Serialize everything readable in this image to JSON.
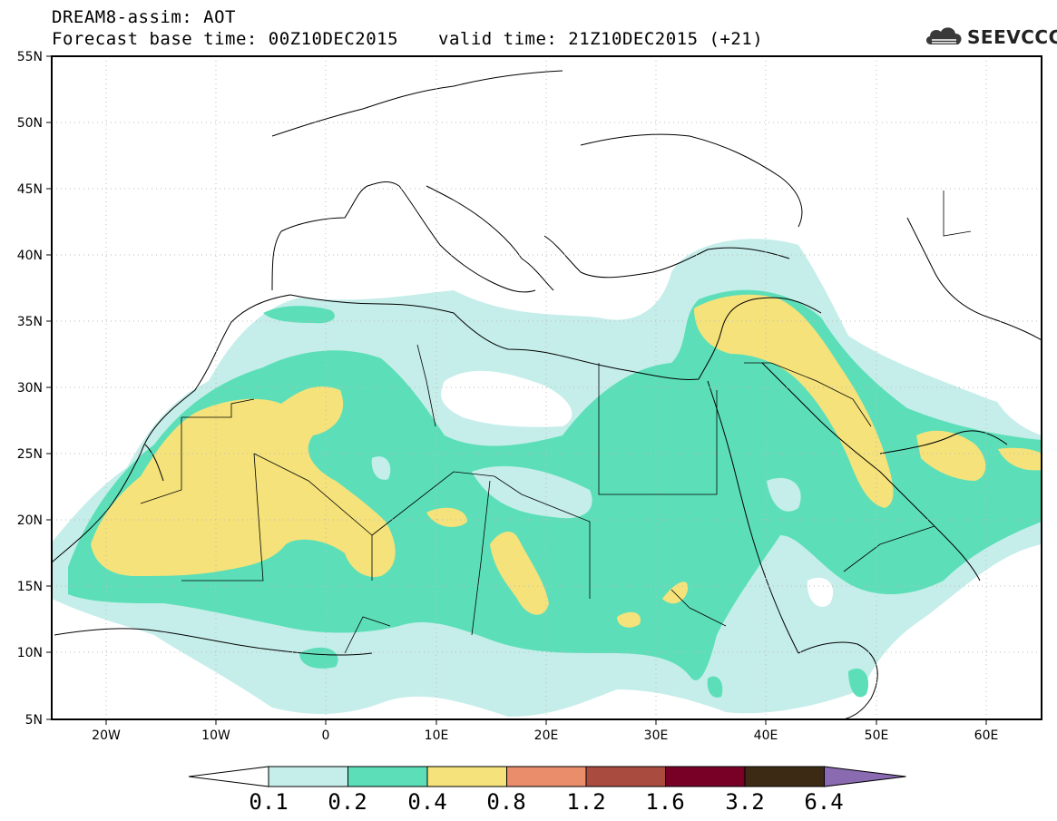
{
  "title_line1": "DREAM8-assim: AOT",
  "title_base": "Forecast base time: 00Z10DEC2015",
  "title_valid": "valid time: 21Z10DEC2015 (+21)",
  "logo_text": "SEEVCCC",
  "lat_labels": [
    "55N",
    "50N",
    "45N",
    "40N",
    "35N",
    "30N",
    "25N",
    "20N",
    "15N",
    "10N",
    "5N"
  ],
  "lon_labels": [
    "20W",
    "10W",
    "0",
    "10E",
    "20E",
    "30E",
    "40E",
    "50E",
    "60E"
  ],
  "colorbar": {
    "labels": [
      "0.1",
      "0.2",
      "0.4",
      "0.8",
      "1.2",
      "1.6",
      "3.2",
      "6.4"
    ],
    "colors": [
      "#ffffff",
      "#c5eeea",
      "#5cdfb8",
      "#f5e27a",
      "#e98d6b",
      "#a94b3e",
      "#780026",
      "#3d2a14",
      "#8a6ab0"
    ]
  },
  "map": {
    "field": "AOT",
    "lon_range": [
      -25,
      65
    ],
    "lat_range": [
      5,
      55
    ]
  }
}
